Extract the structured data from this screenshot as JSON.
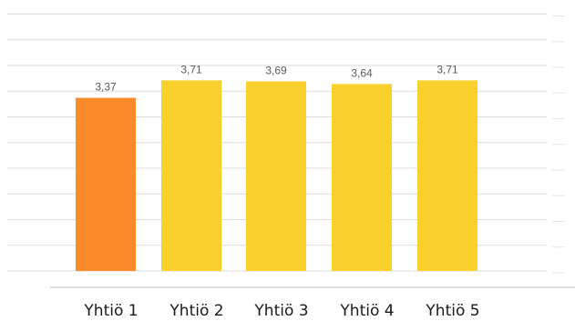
{
  "chart_data": {
    "type": "bar",
    "categories": [
      "Yhtiö 1",
      "Yhtiö 2",
      "Yhtiö 3",
      "Yhtiö 4",
      "Yhtiö 5"
    ],
    "values": [
      3.37,
      3.71,
      3.69,
      3.64,
      3.71
    ],
    "value_labels": [
      "3,37",
      "3,71",
      "3,69",
      "3,64",
      "3,71"
    ],
    "highlight_index": 0,
    "colors": {
      "highlight": "#FB8C2C",
      "default": "#FAD02C",
      "grid": "#DCDCDC",
      "value_text": "#595959",
      "category_text": "#1A1A1A"
    },
    "ylim": [
      0,
      5
    ],
    "grid": true
  }
}
